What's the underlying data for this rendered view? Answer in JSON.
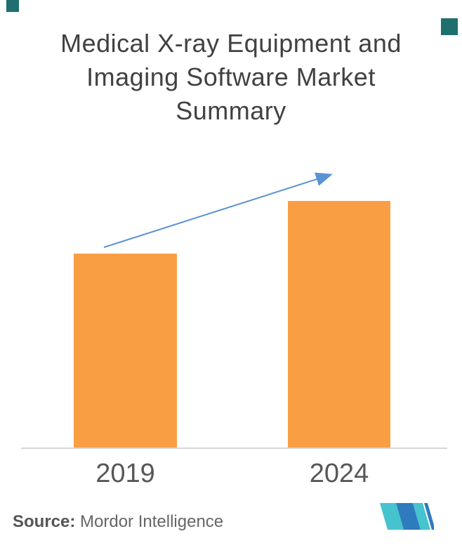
{
  "title": {
    "text": "Medical X-ray Equipment and Imaging Software Market Summary"
  },
  "chart_data": {
    "type": "bar",
    "title": "Medical X-ray Equipment and Imaging Software Market Summary",
    "categories": [
      "2019",
      "2024"
    ],
    "values": [
      55,
      70
    ],
    "value_note": "no numeric axis or data labels shown; values are relative size estimates (2019 bar is ~79% of 2024 bar height)",
    "xlabel": "",
    "ylabel": "",
    "grid": false,
    "legend": false,
    "annotations": [
      "upward blue trend arrow from top of 2019 bar to top of 2024 bar"
    ]
  },
  "source": {
    "label": "Source:",
    "text": "Mordor Intelligence"
  },
  "icons": {
    "trend_arrow": "growth-trend-arrow",
    "logo": "mordor-intelligence-logo"
  },
  "colors": {
    "bar": "#FA9E44",
    "arrow": "#5B93D2",
    "axis": "#D6D6D6",
    "title-text": "#414141",
    "label-text": "#575757",
    "source-text": "#666666",
    "corner-square": "#1E6F6D",
    "logo-teal": "#45C3CF",
    "logo-blue": "#2E7BBE"
  }
}
